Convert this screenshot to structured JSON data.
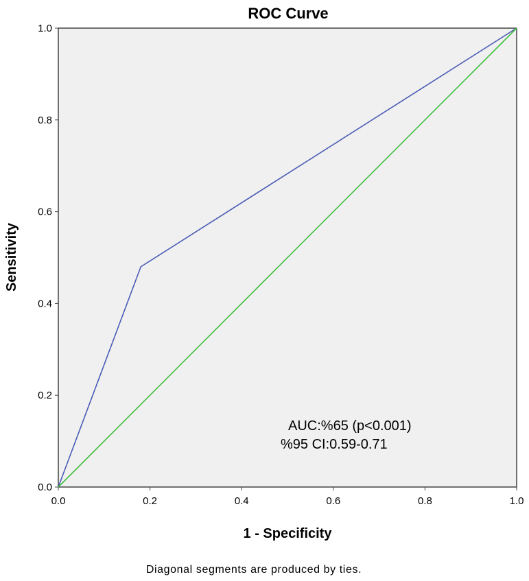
{
  "chart_data": {
    "type": "line",
    "title": "ROC Curve",
    "xlabel": "1 - Specificity",
    "ylabel": "Sensitivity",
    "xlim": [
      0,
      1
    ],
    "ylim": [
      0,
      1
    ],
    "x_ticks": [
      "0.0",
      "0.2",
      "0.4",
      "0.6",
      "0.8",
      "1.0"
    ],
    "y_ticks": [
      "0.0",
      "0.2",
      "0.4",
      "0.6",
      "0.8",
      "1.0"
    ],
    "grid": false,
    "legend": "none",
    "series": [
      {
        "color": "#4a5bb5",
        "points": [
          [
            0.0,
            0.0
          ],
          [
            0.18,
            0.48
          ],
          [
            1.0,
            1.0
          ]
        ]
      },
      {
        "color": "#3fbf3f",
        "points": [
          [
            0.0,
            0.0
          ],
          [
            1.0,
            1.0
          ]
        ]
      }
    ],
    "annotations": [
      "AUC:%65 (p<0.001)",
      "%95 CI:0.59-0.71"
    ],
    "footnote": "Diagonal segments are produced by ties.",
    "plot_background": "#f0f0f0"
  }
}
